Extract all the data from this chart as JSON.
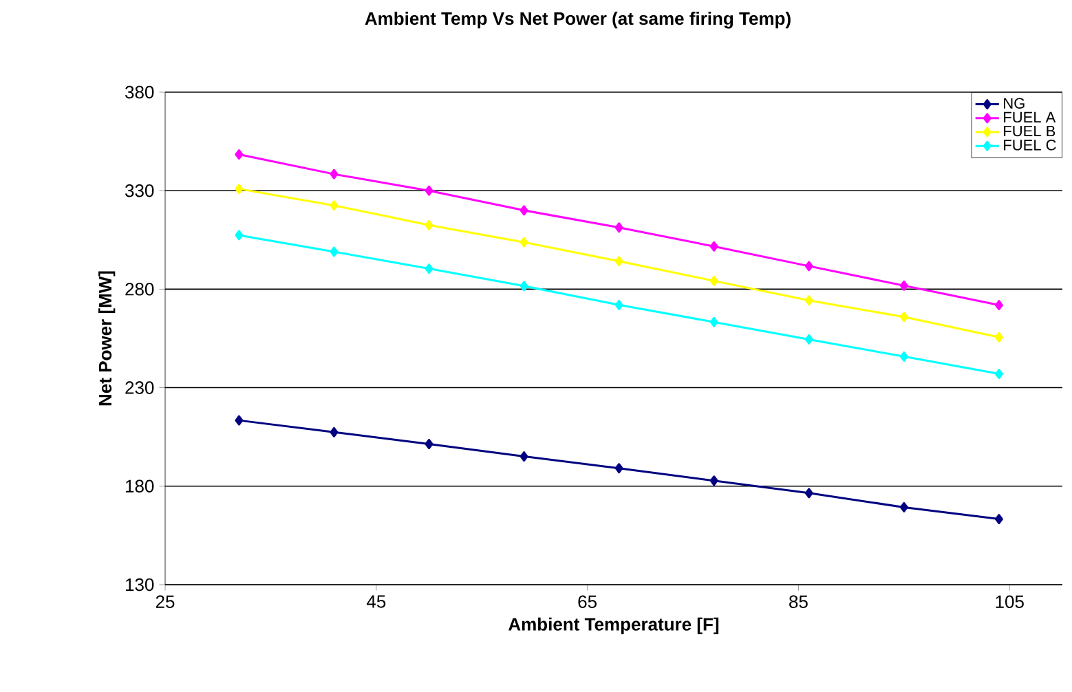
{
  "chart_data": {
    "type": "line",
    "title": "Ambient Temp Vs Net Power (at same firing Temp)",
    "xlabel": "Ambient Temperature [F]",
    "ylabel": "Net Power [MW]",
    "x": [
      32,
      41,
      50,
      59,
      68,
      77,
      86,
      95,
      104
    ],
    "series": [
      {
        "name": "NG",
        "color": "#000080",
        "values": [
          213.4,
          207.4,
          201.4,
          195.1,
          189.1,
          182.8,
          176.5,
          169.3,
          163.3
        ]
      },
      {
        "name": "FUEL A",
        "color": "#ff00ff",
        "values": [
          348.4,
          338.4,
          330,
          320,
          311.3,
          301.7,
          291.7,
          281.8,
          271.9
        ]
      },
      {
        "name": "FUEL B",
        "color": "#ffff00",
        "values": [
          330.9,
          322.5,
          312.5,
          303.8,
          294.2,
          284.2,
          274.3,
          265.9,
          255.6
        ]
      },
      {
        "name": "FUEL C",
        "color": "#00ffff",
        "values": [
          307.4,
          299,
          290.4,
          281.6,
          272,
          263.3,
          254.5,
          245.8,
          237
        ]
      }
    ],
    "xlim": [
      25,
      110
    ],
    "xticks": [
      25,
      45,
      65,
      85,
      105
    ],
    "ylim": [
      130,
      380
    ],
    "yticks": [
      130,
      180,
      230,
      280,
      330,
      380
    ],
    "grid": "y",
    "legend": "top right",
    "marker": "diamond",
    "line_style": "solid"
  }
}
